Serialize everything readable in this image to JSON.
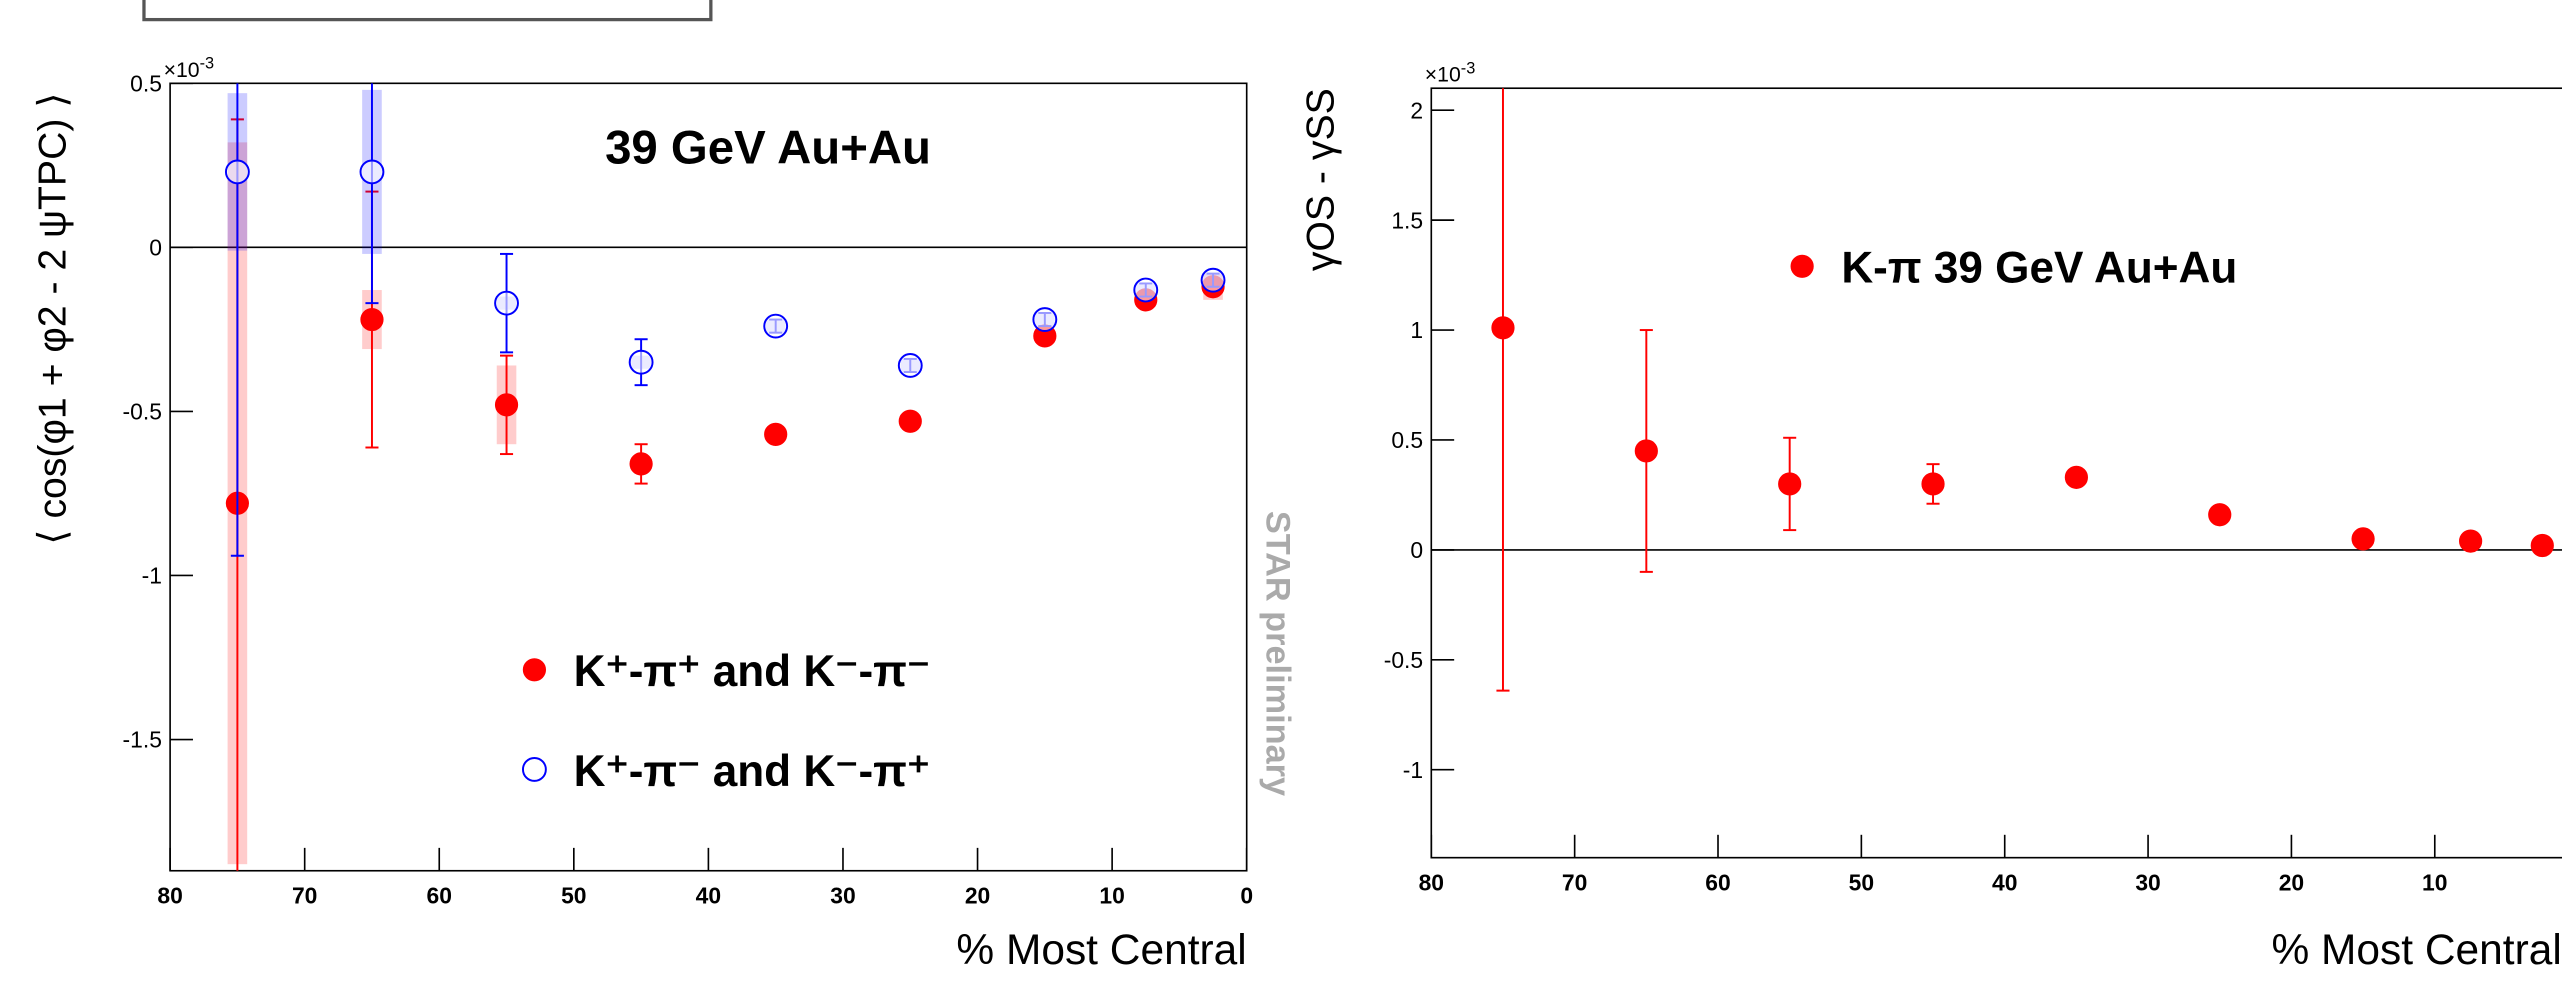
{
  "chart_data": [
    {
      "type": "scatter",
      "annotation": "39 GeV Au+Au",
      "watermark": "STAR preliminary",
      "x_label": "% Most Central",
      "y_label": "⟨ cos(φ1 + φ2 - 2 ψTPC) ⟩",
      "y_multiplier": "×10",
      "y_multiplier_exponent": "-3",
      "x": [
        75,
        65,
        55,
        45,
        35,
        25,
        15,
        7.5,
        2.5
      ],
      "xlim": [
        80,
        0
      ],
      "xticks": [
        80,
        70,
        60,
        50,
        40,
        30,
        20,
        10,
        0
      ],
      "ylim": [
        -1.9,
        0.5
      ],
      "yticks": [
        0.5,
        0,
        -0.5,
        -1,
        -1.5
      ],
      "zero_line": true,
      "grid": false,
      "series": [
        {
          "name": "K⁺-π⁺ and K⁻-π⁻",
          "color": "#ff0000",
          "marker": "filled",
          "values": [
            -0.78,
            -0.22,
            -0.48,
            -0.66,
            -0.57,
            -0.53,
            -0.27,
            -0.16,
            -0.12
          ],
          "errors": [
            1.17,
            0.39,
            0.15,
            0.06,
            0.02,
            0.02,
            0.02,
            0.02,
            0.02
          ],
          "sys_errors": [
            1.1,
            0.09,
            0.12,
            0.02,
            0.02,
            0.02,
            0.02,
            0.02,
            0.04
          ]
        },
        {
          "name": "K⁺-π⁻ and K⁻-π⁺",
          "color": "#0000ff",
          "marker": "open",
          "values": [
            0.23,
            0.23,
            -0.17,
            -0.35,
            -0.24,
            -0.36,
            -0.22,
            -0.13,
            -0.1
          ],
          "errors": [
            1.17,
            0.4,
            0.15,
            0.07,
            0.02,
            0.02,
            0.02,
            0.02,
            0.02
          ],
          "sys_errors": [
            0.24,
            0.25,
            0.02,
            0.02,
            0.02,
            0.02,
            0.02,
            0.02,
            0.02
          ]
        }
      ]
    },
    {
      "type": "scatter",
      "x_label": "% Most Central",
      "y_label": "γOS - γSS",
      "y_multiplier": "×10",
      "y_multiplier_exponent": "-3",
      "x": [
        75,
        65,
        55,
        45,
        35,
        25,
        15,
        7.5,
        2.5
      ],
      "xlim": [
        80,
        0
      ],
      "xticks": [
        80,
        70,
        60,
        50,
        40,
        30,
        20,
        10
      ],
      "ylim": [
        -1.4,
        2.1
      ],
      "yticks": [
        2,
        1.5,
        1,
        0.5,
        0,
        -0.5,
        -1
      ],
      "zero_line": true,
      "grid": false,
      "series": [
        {
          "name": "K-π 39 GeV Au+Au",
          "color": "#ff0000",
          "marker": "filled",
          "values": [
            1.01,
            0.45,
            0.3,
            0.3,
            0.33,
            0.16,
            0.05,
            0.04,
            0.02
          ],
          "errors": [
            1.65,
            0.55,
            0.21,
            0.09,
            0.02,
            0.02,
            0.02,
            0.02,
            0.02
          ]
        }
      ]
    }
  ]
}
